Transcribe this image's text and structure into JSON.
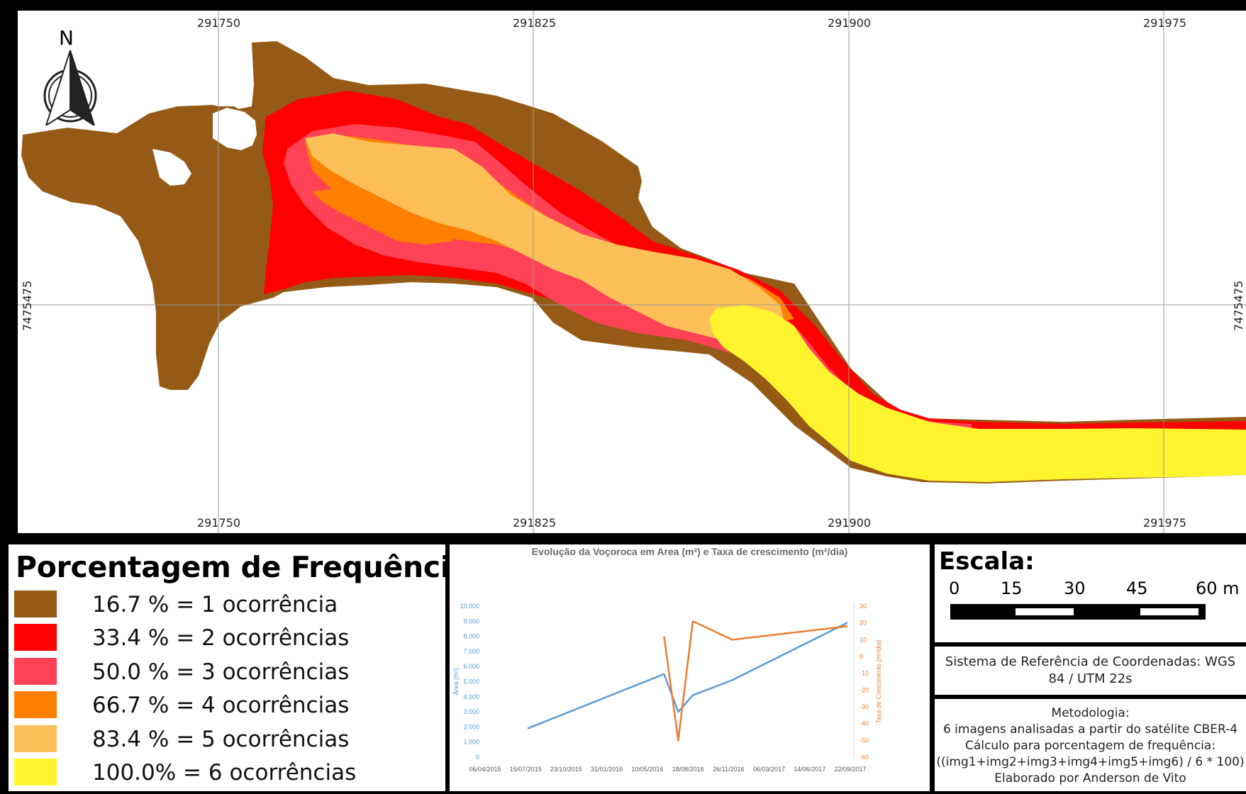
{
  "map": {
    "north_label": "N",
    "easting_labels_top": [
      "291750",
      "291825",
      "291900",
      "291975"
    ],
    "easting_labels_bottom": [
      "291750",
      "291825",
      "291900",
      "291975"
    ],
    "northing_label_left": "7475475",
    "northing_label_right": "7475475",
    "colors": {
      "class1": "#955A15",
      "class2": "#FF0000",
      "class3": "#FF4256",
      "class4": "#FF8000",
      "class5": "#FDC058",
      "class6": "#FFF42E"
    }
  },
  "legend": {
    "title": "Porcentagem de Frequência:",
    "items": [
      {
        "label": "16.7 % = 1 ocorrência",
        "color": "#955A15"
      },
      {
        "label": "33.4 % = 2 ocorrências",
        "color": "#FF0000"
      },
      {
        "label": "50.0 % = 3 ocorrências",
        "color": "#FF4256"
      },
      {
        "label": "66.7 % = 4 ocorrências",
        "color": "#FF8000"
      },
      {
        "label": "83.4 % = 5 ocorrências",
        "color": "#FDC058"
      },
      {
        "label": "100.0% = 6 ocorrências",
        "color": "#FFF42E"
      }
    ]
  },
  "chart_data": {
    "type": "line",
    "title": "Evolução  da Voçoroca em Area (m²) e Taxa de crescimento (m²/dia)",
    "x_tick_labels": [
      "06/04/2015",
      "15/07/2015",
      "23/10/2015",
      "31/01/2016",
      "10/05/2016",
      "18/08/2016",
      "26/11/2016",
      "06/03/2017",
      "14/06/2017",
      "22/09/2017"
    ],
    "y_left_label": "Área (m²)",
    "y_left_ticks": [
      "10.000",
      "9.000",
      "8.000",
      "7.000",
      "6.000",
      "5.000",
      "4.000",
      "3.000",
      "2.000",
      "1.000",
      "0"
    ],
    "y_left_range": [
      0,
      10000
    ],
    "y_right_label": "Taxa de Crescimento (m²/dia)",
    "y_right_ticks": [
      "30",
      "20",
      "10",
      "0",
      "-10",
      "-20",
      "-30",
      "-40",
      "-50",
      "-60"
    ],
    "y_right_range": [
      -60,
      30
    ],
    "series": [
      {
        "axis": "left",
        "color": "#5B9BD5",
        "points": [
          [
            "2015-07-20",
            1900
          ],
          [
            "2016-06-20",
            5500
          ],
          [
            "2016-07-25",
            3000
          ],
          [
            "2016-08-30",
            4100
          ],
          [
            "2016-12-05",
            5100
          ],
          [
            "2017-09-15",
            8900
          ]
        ]
      },
      {
        "axis": "right",
        "color": "#ED7D31",
        "points": [
          [
            "2016-06-20",
            12
          ],
          [
            "2016-07-25",
            -50
          ],
          [
            "2016-08-30",
            21
          ],
          [
            "2016-12-05",
            10
          ],
          [
            "2017-09-15",
            18
          ]
        ]
      }
    ]
  },
  "scale": {
    "title": "Escala:",
    "labels": [
      "0",
      "15",
      "30",
      "45",
      "60 m"
    ]
  },
  "crs": {
    "line1": "Sistema de Referência de Coordenadas: WGS",
    "line2": "84 / UTM 22s"
  },
  "methodology": {
    "lines": [
      "Metodologia:",
      "6 imagens analisadas a partir do satélite CBER-4",
      "Cálculo para porcentagem de frequência:",
      "((img1+img2+img3+img4+img5+img6) / 6 * 100)",
      "Elaborado por Anderson de Vito"
    ]
  }
}
